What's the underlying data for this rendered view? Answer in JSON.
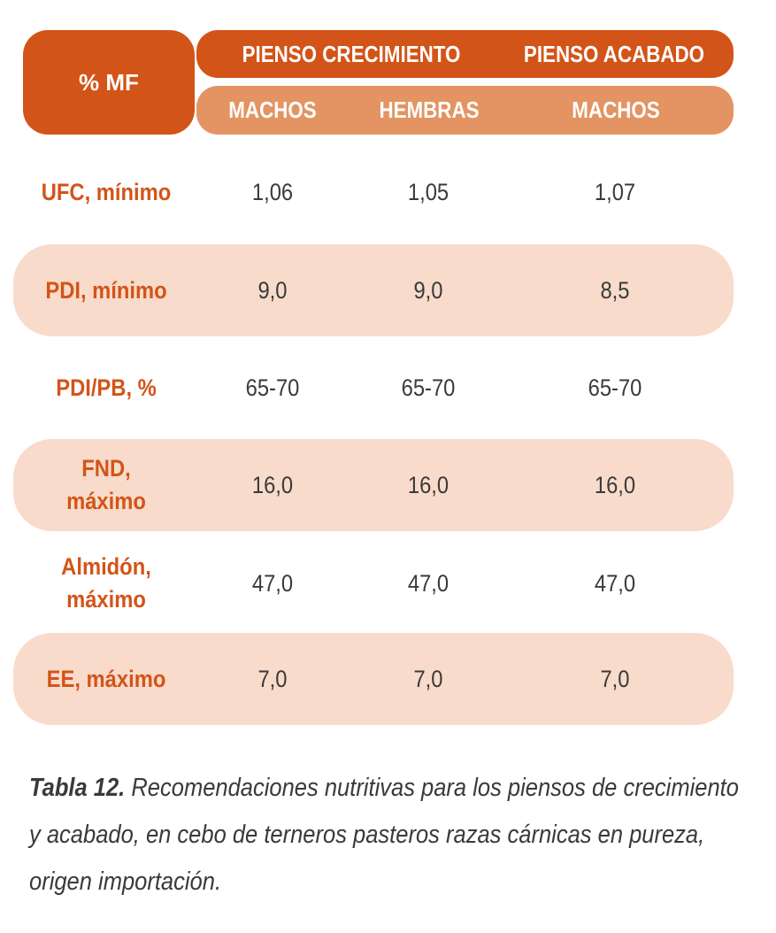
{
  "table": {
    "corner_label": "% MF",
    "group_headers": [
      "PIENSO CRECIMIENTO",
      "PIENSO ACABADO"
    ],
    "sub_headers": [
      "MACHOS",
      "HEMBRAS",
      "MACHOS"
    ],
    "rows": [
      {
        "label": "UFC, mínimo",
        "values": [
          "1,06",
          "1,05",
          "1,07"
        ]
      },
      {
        "label": "PDI, mínimo",
        "values": [
          "9,0",
          "9,0",
          "8,5"
        ]
      },
      {
        "label": "PDI/PB, %",
        "values": [
          "65-70",
          "65-70",
          "65-70"
        ]
      },
      {
        "label": "FND,\nmáximo",
        "values": [
          "16,0",
          "16,0",
          "16,0"
        ]
      },
      {
        "label": "Almidón,\nmáximo",
        "values": [
          "47,0",
          "47,0",
          "47,0"
        ]
      },
      {
        "label": "EE, máximo",
        "values": [
          "7,0",
          "7,0",
          "7,0"
        ]
      }
    ]
  },
  "caption": {
    "label": "Tabla 12.",
    "text": " Recomendaciones nutritivas para los piensos de crecimiento y acabado, en cebo de terneros pasteros razas cárnicas en pureza, origen importación."
  },
  "colors": {
    "header_dark": "#d35418",
    "header_light": "#e39462",
    "band": "#f8dbcb",
    "label_text": "#d35418",
    "value_text": "#3a3a3a"
  }
}
